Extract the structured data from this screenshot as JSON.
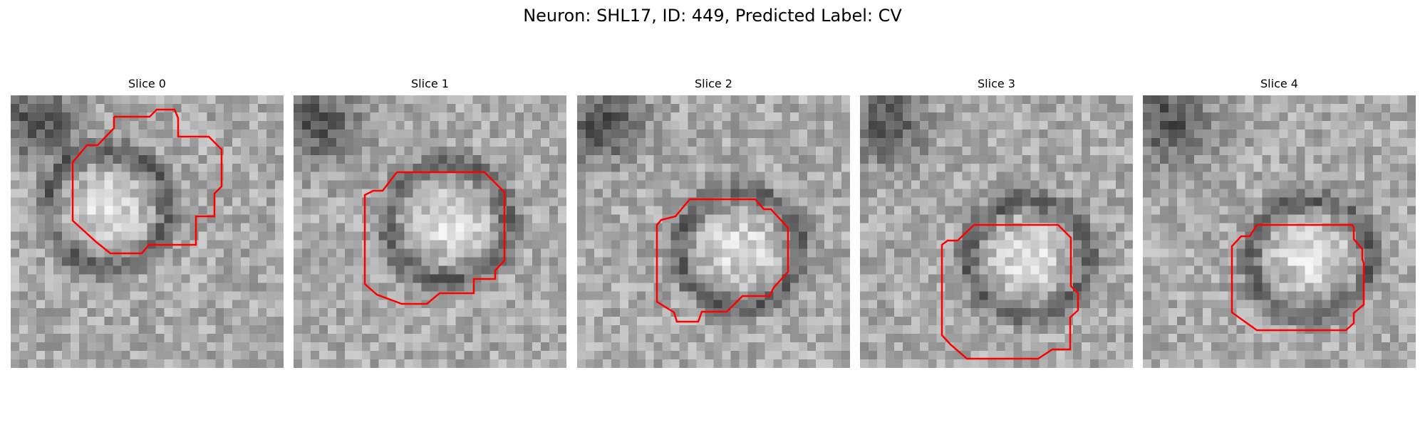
{
  "figure": {
    "title": "Neuron: SHL17, ID: 449, Predicted Label: CV"
  },
  "panels": [
    {
      "title": "Slice 0"
    },
    {
      "title": "Slice 1"
    },
    {
      "title": "Slice 2"
    },
    {
      "title": "Slice 3"
    },
    {
      "title": "Slice 4"
    }
  ],
  "contour_color": "#ff0000"
}
